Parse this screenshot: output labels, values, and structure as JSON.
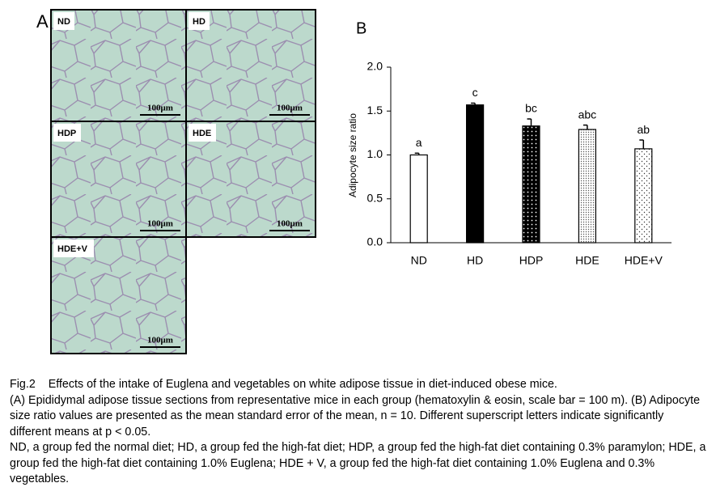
{
  "panel_a": {
    "label": "A",
    "panels": [
      {
        "label": "ND",
        "scale": "100μm"
      },
      {
        "label": "HD",
        "scale": "100μm"
      },
      {
        "label": "HDP",
        "scale": "100μm"
      },
      {
        "label": "HDE",
        "scale": "100μm"
      },
      {
        "label": "HDE+V",
        "scale": "100μm"
      }
    ]
  },
  "chart_data": {
    "type": "bar",
    "panel_label": "B",
    "ylabel": "Adipocyte size ratio",
    "categories": [
      "ND",
      "HD",
      "HDP",
      "HDE",
      "HDE+V"
    ],
    "values": [
      1.0,
      1.57,
      1.33,
      1.29,
      1.07
    ],
    "errors": [
      0.02,
      0.02,
      0.08,
      0.05,
      0.1
    ],
    "letters": [
      "a",
      "c",
      "bc",
      "abc",
      "ab"
    ],
    "ylim": [
      0,
      2
    ],
    "yticks": [
      {
        "value": 0,
        "label": "0.0"
      },
      0.5,
      {
        "value": 1,
        "label": "1.0"
      },
      1.5,
      {
        "value": 2,
        "label": "2.0"
      }
    ]
  },
  "caption": {
    "label": "Fig.2",
    "title": "Effects of the intake of Euglena and vegetables on white adipose tissue in diet-induced obese mice.",
    "paragraphs": [
      "(A) Epididymal adipose tissue sections from representative mice in each group (hematoxylin & eosin, scale bar = 100 m). (B) Adipocyte size ratio values are presented as the mean  standard error of the mean, n = 10. Different superscript letters indicate significantly different means at p < 0.05.",
      "ND, a group fed the normal diet; HD, a group fed the high-fat diet; HDP, a group fed the high-fat diet containing 0.3% paramylon; HDE, a group fed the high-fat diet containing 1.0% Euglena; HDE + V, a group fed the high-fat diet containing 1.0% Euglena and 0.3% vegetables."
    ]
  }
}
